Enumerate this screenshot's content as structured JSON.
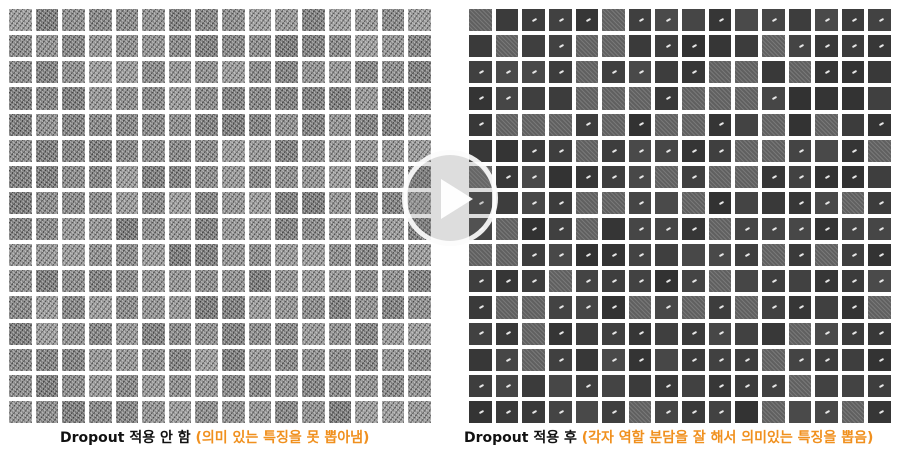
{
  "captions": {
    "left": {
      "main": "Dropout 적용 안 함",
      "note": "(의미 있는 특징을 못 뽑아냄)"
    },
    "right": {
      "main": "Dropout 적용 후",
      "note": "(각자 역할 분담을 잘 해서 의미있는 특징을 뽑음)"
    }
  },
  "panels": {
    "left": {
      "rows": 16,
      "cols": 16
    },
    "right": {
      "rows": 16,
      "cols": 16
    }
  },
  "icons": {
    "play": "play-icon"
  },
  "colors": {
    "caption_text": "#111111",
    "caption_note": "#f0901e"
  }
}
